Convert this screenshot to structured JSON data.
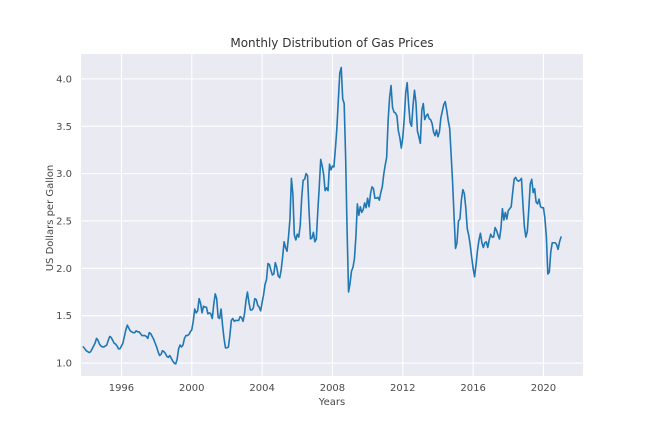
{
  "chart_data": {
    "type": "line",
    "title": "Monthly Distribution of Gas Prices",
    "xlabel": "Years",
    "ylabel": "US Dollars per Gallon",
    "legend": null,
    "grid": true,
    "plot_bg_color": "#eaeaf2",
    "grid_color": "#ffffff",
    "line_color": "#1f77b4",
    "text_color": "#3c3c3c",
    "xlim": [
      1993.7,
      2022.25
    ],
    "ylim": [
      0.863,
      4.263
    ],
    "x_axis": {
      "ticks": [
        1996,
        2000,
        2004,
        2008,
        2012,
        2016,
        2020
      ],
      "labels": [
        "1996",
        "2000",
        "2004",
        "2008",
        "2012",
        "2016",
        "2020"
      ]
    },
    "y_axis": {
      "ticks": [
        1.0,
        1.5,
        2.0,
        2.5,
        3.0,
        3.5,
        4.0
      ],
      "labels": [
        "1.0",
        "1.5",
        "2.0",
        "2.5",
        "3.0",
        "3.5",
        "4.0"
      ]
    },
    "series": [
      {
        "start_year": 1993.8333,
        "points_per_year": 12,
        "values": [
          1.17,
          1.15,
          1.13,
          1.12,
          1.11,
          1.12,
          1.15,
          1.18,
          1.21,
          1.26,
          1.24,
          1.2,
          1.18,
          1.17,
          1.17,
          1.18,
          1.19,
          1.24,
          1.28,
          1.27,
          1.24,
          1.21,
          1.2,
          1.18,
          1.15,
          1.15,
          1.18,
          1.21,
          1.28,
          1.35,
          1.4,
          1.37,
          1.34,
          1.33,
          1.32,
          1.32,
          1.34,
          1.33,
          1.33,
          1.31,
          1.29,
          1.29,
          1.29,
          1.28,
          1.26,
          1.32,
          1.31,
          1.28,
          1.25,
          1.21,
          1.17,
          1.12,
          1.08,
          1.09,
          1.13,
          1.12,
          1.1,
          1.07,
          1.06,
          1.08,
          1.05,
          1.02,
          1.0,
          0.99,
          1.04,
          1.15,
          1.19,
          1.17,
          1.19,
          1.26,
          1.29,
          1.29,
          1.3,
          1.33,
          1.35,
          1.44,
          1.57,
          1.53,
          1.55,
          1.68,
          1.63,
          1.53,
          1.6,
          1.59,
          1.59,
          1.52,
          1.53,
          1.52,
          1.47,
          1.62,
          1.73,
          1.68,
          1.48,
          1.47,
          1.57,
          1.4,
          1.26,
          1.16,
          1.16,
          1.17,
          1.29,
          1.45,
          1.47,
          1.44,
          1.45,
          1.45,
          1.45,
          1.49,
          1.48,
          1.44,
          1.52,
          1.66,
          1.75,
          1.64,
          1.56,
          1.56,
          1.58,
          1.68,
          1.67,
          1.61,
          1.59,
          1.55,
          1.64,
          1.72,
          1.83,
          1.88,
          2.05,
          2.04,
          1.98,
          1.93,
          1.94,
          2.06,
          2.01,
          1.92,
          1.9,
          1.98,
          2.12,
          2.28,
          2.22,
          2.18,
          2.33,
          2.52,
          2.95,
          2.78,
          2.35,
          2.3,
          2.36,
          2.33,
          2.45,
          2.74,
          2.93,
          2.94,
          3.0,
          2.98,
          2.62,
          2.31,
          2.32,
          2.38,
          2.28,
          2.31,
          2.6,
          2.86,
          3.15,
          3.08,
          2.99,
          2.82,
          2.85,
          2.82,
          3.1,
          3.04,
          3.08,
          3.07,
          3.26,
          3.47,
          3.77,
          4.06,
          4.12,
          3.79,
          3.74,
          3.17,
          2.4,
          1.75,
          1.84,
          1.97,
          2.01,
          2.1,
          2.33,
          2.68,
          2.56,
          2.65,
          2.59,
          2.62,
          2.69,
          2.64,
          2.74,
          2.65,
          2.79,
          2.86,
          2.84,
          2.74,
          2.74,
          2.75,
          2.72,
          2.8,
          2.86,
          2.99,
          3.09,
          3.17,
          3.56,
          3.8,
          3.93,
          3.7,
          3.65,
          3.64,
          3.61,
          3.45,
          3.38,
          3.27,
          3.38,
          3.58,
          3.85,
          3.96,
          3.73,
          3.54,
          3.5,
          3.72,
          3.88,
          3.75,
          3.45,
          3.39,
          3.32,
          3.67,
          3.74,
          3.57,
          3.61,
          3.63,
          3.58,
          3.57,
          3.53,
          3.44,
          3.4,
          3.46,
          3.39,
          3.44,
          3.59,
          3.66,
          3.73,
          3.76,
          3.67,
          3.56,
          3.48,
          3.2,
          2.91,
          2.55,
          2.21,
          2.27,
          2.5,
          2.52,
          2.72,
          2.83,
          2.79,
          2.64,
          2.42,
          2.35,
          2.25,
          2.12,
          2.0,
          1.91,
          2.04,
          2.19,
          2.3,
          2.37,
          2.27,
          2.22,
          2.27,
          2.28,
          2.22,
          2.3,
          2.36,
          2.33,
          2.33,
          2.43,
          2.4,
          2.35,
          2.31,
          2.42,
          2.63,
          2.51,
          2.59,
          2.52,
          2.61,
          2.63,
          2.65,
          2.8,
          2.94,
          2.96,
          2.93,
          2.92,
          2.93,
          2.95,
          2.68,
          2.44,
          2.33,
          2.39,
          2.62,
          2.89,
          2.94,
          2.8,
          2.84,
          2.7,
          2.68,
          2.73,
          2.65,
          2.64,
          2.64,
          2.53,
          2.33,
          1.94,
          1.96,
          2.17,
          2.27,
          2.27,
          2.27,
          2.25,
          2.2,
          2.28,
          2.33
        ]
      }
    ]
  }
}
